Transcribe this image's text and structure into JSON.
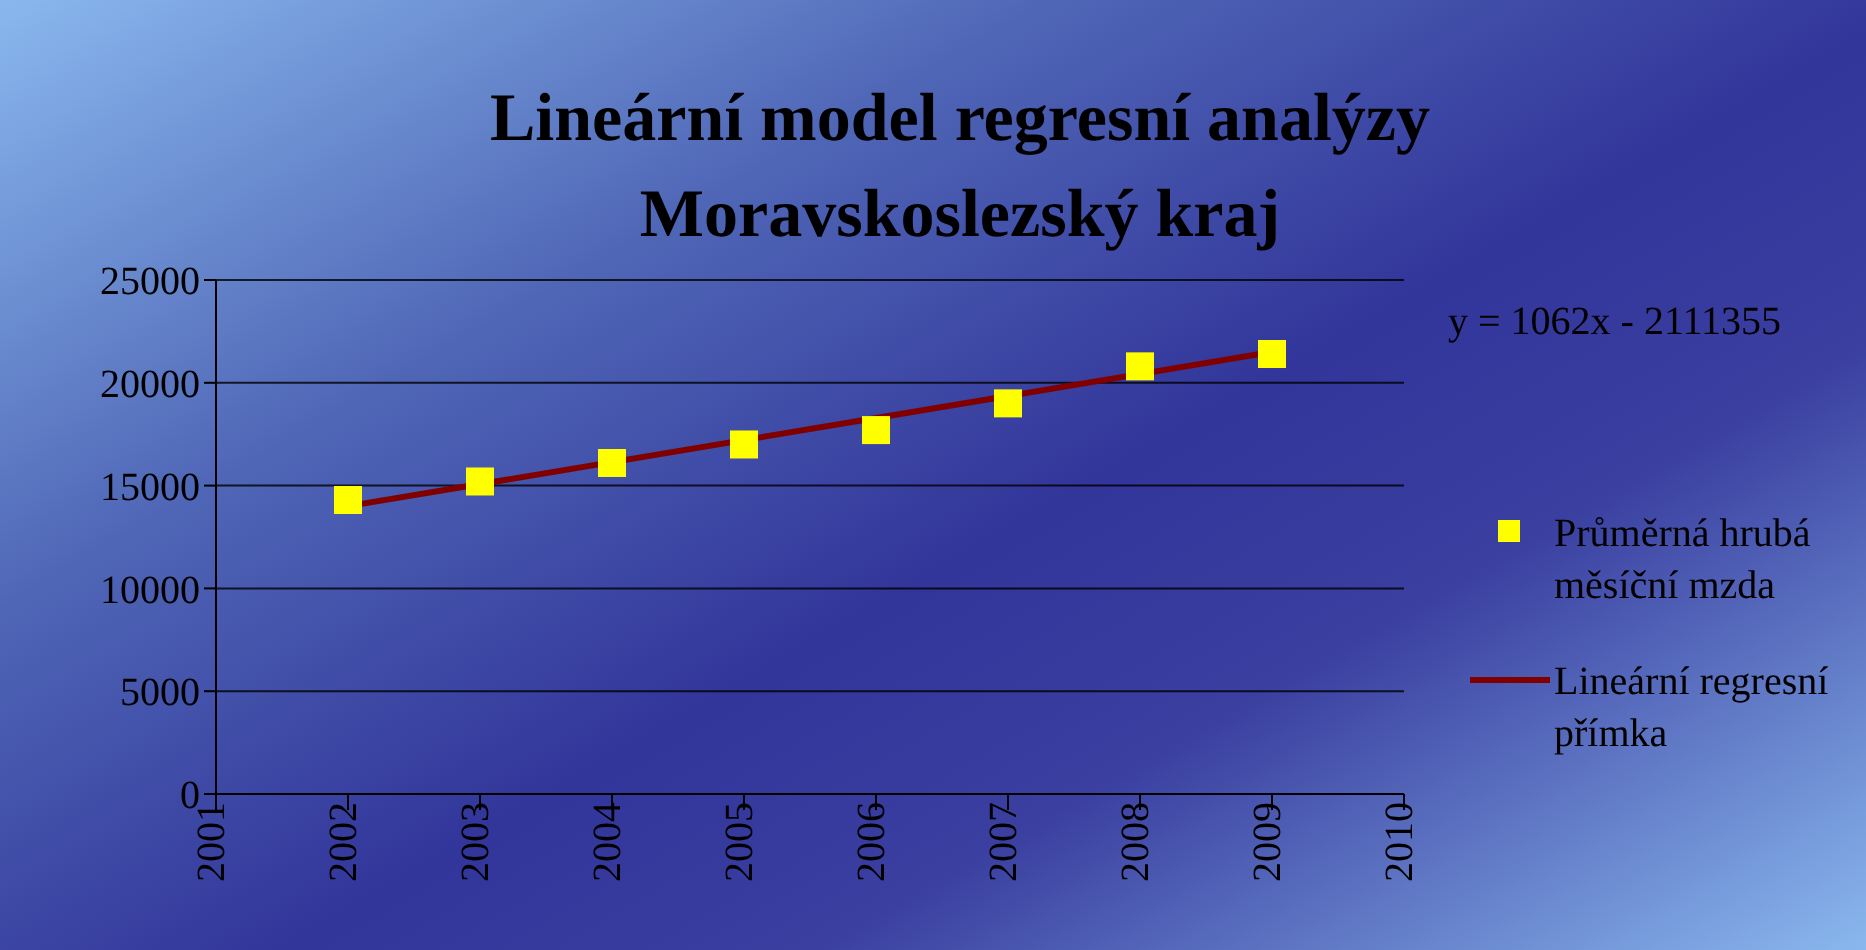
{
  "chart_data": {
    "type": "scatter",
    "title": "Lineární model regresní analýzy\nMoravskoslezský kraj",
    "annotations": [
      "y = 1062x - 2111355"
    ],
    "x": [
      2002,
      2003,
      2004,
      2005,
      2006,
      2007,
      2008,
      2009
    ],
    "series": [
      {
        "name": "Průměrná hrubá měsíční mzda",
        "color": "#ffff00",
        "marker": "square",
        "values": [
          14300,
          15200,
          16100,
          17000,
          17700,
          19000,
          20800,
          21400
        ]
      },
      {
        "name": "Lineární regresní přímka",
        "type": "line",
        "color": "#800000",
        "x": [
          2002,
          2009
        ],
        "values": [
          14000,
          21500
        ]
      }
    ],
    "xlim": [
      2001,
      2010
    ],
    "xticks": [
      2001,
      2002,
      2003,
      2004,
      2005,
      2006,
      2007,
      2008,
      2009,
      2010
    ],
    "ylim": [
      0,
      25000
    ],
    "yticks": [
      0,
      5000,
      10000,
      15000,
      20000,
      25000
    ],
    "grid": "y",
    "legend": "right"
  }
}
